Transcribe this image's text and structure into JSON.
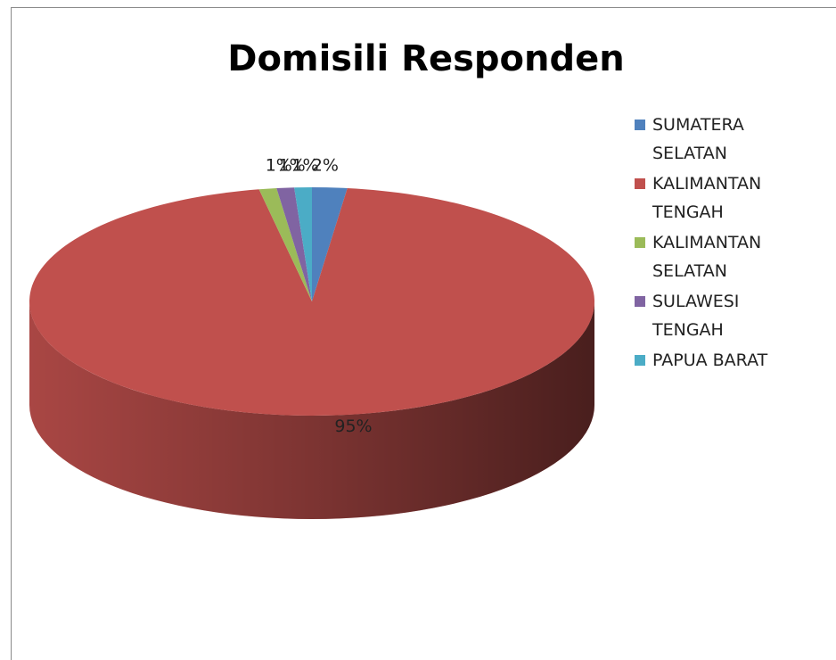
{
  "chart_data": {
    "type": "pie",
    "title": "Domisili Responden",
    "categories": [
      "SUMATERA SELATAN",
      "KALIMANTAN TENGAH",
      "KALIMANTAN SELATAN",
      "SULAWESI TENGAH",
      "PAPUA BARAT"
    ],
    "values": [
      2,
      95,
      1,
      1,
      1
    ],
    "value_labels": [
      "2%",
      "95%",
      "1%",
      "1%",
      "1%"
    ],
    "colors": [
      "#4f81bd",
      "#c0504d",
      "#9bbb59",
      "#8064a2",
      "#4bacc6"
    ],
    "legend": "right"
  }
}
